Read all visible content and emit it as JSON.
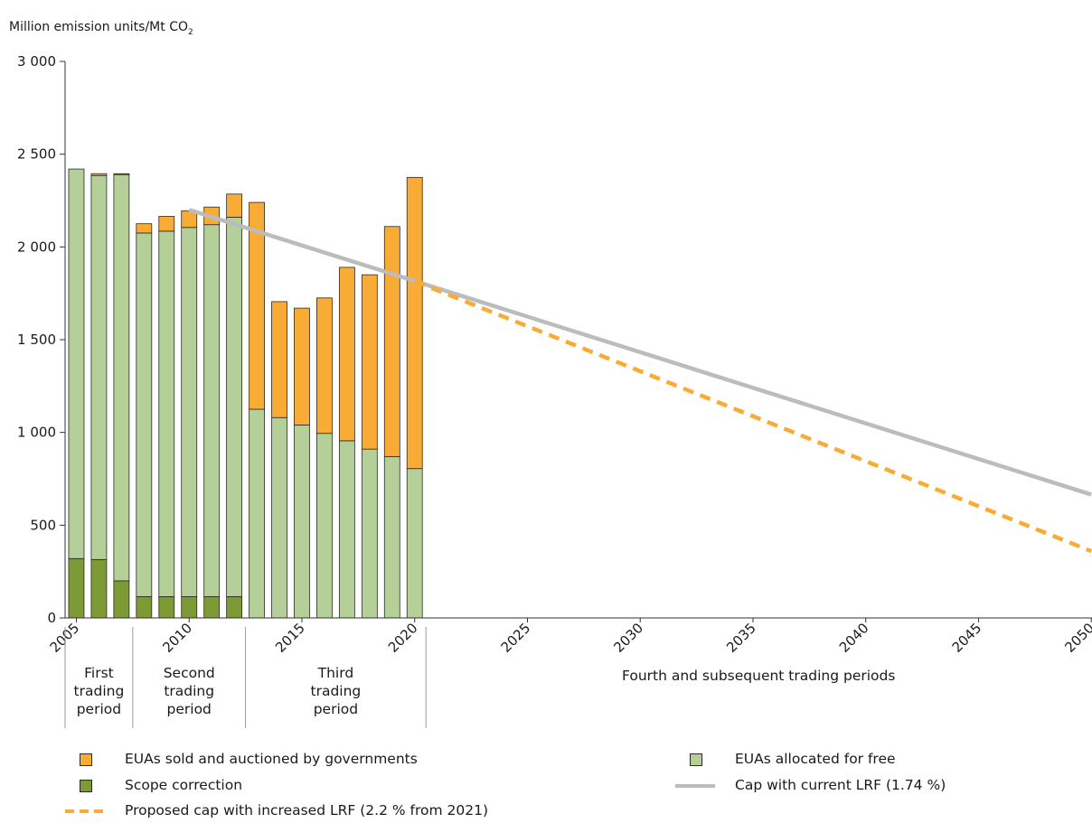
{
  "chart_data": {
    "type": "bar",
    "ylabel_main": "Million emission units/Mt CO",
    "ylabel_sub": "2",
    "ylim": [
      0,
      3000
    ],
    "yticks": [
      0,
      500,
      1000,
      1500,
      2000,
      2500,
      3000
    ],
    "ytick_labels": [
      "0",
      "500",
      "1 000",
      "1 500",
      "2 000",
      "2 500",
      "3 000"
    ],
    "xlim": [
      2004.5,
      2050
    ],
    "xticks": [
      2005,
      2010,
      2015,
      2020,
      2025,
      2030,
      2035,
      2040,
      2045,
      2050
    ],
    "xtick_labels": [
      "2005",
      "2010",
      "2015",
      "2020",
      "2025",
      "2030",
      "2035",
      "2040",
      "2045",
      "2050"
    ],
    "years": [
      2005,
      2006,
      2007,
      2008,
      2009,
      2010,
      2011,
      2012,
      2013,
      2014,
      2015,
      2016,
      2017,
      2018,
      2019,
      2020
    ],
    "series": [
      {
        "name": "Scope correction",
        "color": "#7d9a35",
        "values": [
          320,
          315,
          200,
          115,
          115,
          115,
          115,
          115,
          0,
          0,
          0,
          0,
          0,
          0,
          0,
          0
        ]
      },
      {
        "name": "EUAs allocated for free",
        "color": "#b5cf99",
        "values": [
          2100,
          2070,
          2190,
          1960,
          1970,
          1990,
          2005,
          2045,
          1125,
          1080,
          1040,
          995,
          955,
          910,
          870,
          805
        ]
      },
      {
        "name": "EUAs sold and auctioned by governments",
        "color": "#f8ab35",
        "values": [
          0,
          10,
          5,
          50,
          80,
          90,
          95,
          125,
          1115,
          625,
          630,
          730,
          935,
          940,
          1240,
          1570
        ]
      }
    ],
    "lines": [
      {
        "name": "Cap with current LRF (1.74 %)",
        "color": "#bcbcbc",
        "style": "solid",
        "points": [
          [
            2010,
            2200
          ],
          [
            2050,
            665
          ]
        ]
      },
      {
        "name": "Proposed cap with increased LRF (2.2 % from 2021)",
        "color": "#f8ab35",
        "style": "dashed",
        "points": [
          [
            2020,
            1815
          ],
          [
            2050,
            360
          ]
        ]
      }
    ],
    "periods": [
      {
        "label_lines": [
          "First",
          "trading",
          "period"
        ],
        "from": 2004.5,
        "to": 2007.5
      },
      {
        "label_lines": [
          "Second",
          "trading",
          "period"
        ],
        "from": 2007.5,
        "to": 2012.5
      },
      {
        "label_lines": [
          "Third",
          "trading",
          "period"
        ],
        "from": 2012.5,
        "to": 2020.5
      },
      {
        "label_lines": [
          "Fourth and subsequent trading periods"
        ],
        "from": 2020.5,
        "to": 2050
      }
    ],
    "legend": {
      "placement": "bottom",
      "items": [
        {
          "label": "EUAs sold and auctioned by governments",
          "kind": "box",
          "color": "#f8ab35"
        },
        {
          "label": "EUAs allocated for free",
          "kind": "box",
          "color": "#b5cf99"
        },
        {
          "label": "Scope correction",
          "kind": "box",
          "color": "#7d9a35"
        },
        {
          "label": "Cap with current LRF (1.74 %)",
          "kind": "line",
          "color": "#bcbcbc"
        },
        {
          "label": "Proposed cap with increased LRF (2.2 % from 2021)",
          "kind": "dash",
          "color": "#f8ab35"
        }
      ]
    }
  }
}
